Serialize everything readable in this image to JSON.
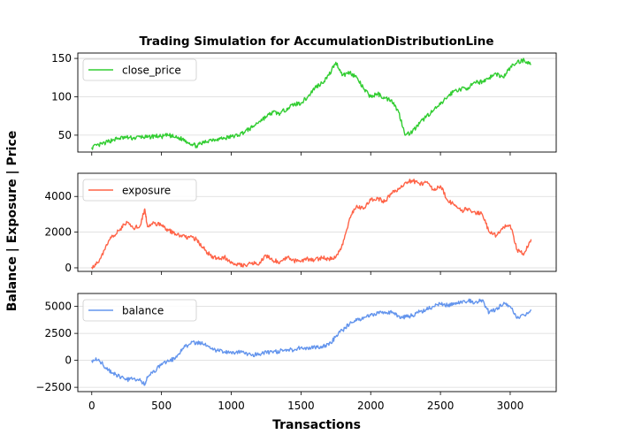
{
  "chart_data": {
    "type": "line",
    "title": "Trading Simulation for AccumulationDistributionLine",
    "xlabel": "Transactions",
    "ylabel": "Balance | Exposure | Price",
    "xlim": [
      -100,
      3330
    ],
    "x_ticks": [
      0,
      500,
      1000,
      1500,
      2000,
      2500,
      3000
    ],
    "grid": "horizontal",
    "legend_position": "top-left",
    "panels": [
      {
        "series_name": "close_price",
        "color": "#32cd32",
        "ylim": [
          28,
          157
        ],
        "y_ticks": [
          50,
          100,
          150
        ],
        "x": [
          0,
          50,
          100,
          150,
          200,
          250,
          300,
          350,
          400,
          450,
          500,
          550,
          600,
          650,
          700,
          750,
          800,
          850,
          900,
          950,
          1000,
          1050,
          1100,
          1150,
          1200,
          1250,
          1300,
          1350,
          1400,
          1450,
          1500,
          1550,
          1600,
          1650,
          1700,
          1750,
          1800,
          1850,
          1900,
          1950,
          2000,
          2050,
          2100,
          2150,
          2200,
          2250,
          2300,
          2350,
          2400,
          2450,
          2500,
          2550,
          2600,
          2650,
          2700,
          2750,
          2800,
          2850,
          2900,
          2950,
          3000,
          3050,
          3100,
          3150
        ],
        "values": [
          34,
          37,
          40,
          44,
          46,
          47,
          46,
          48,
          47,
          49,
          48,
          50,
          47,
          45,
          40,
          36,
          40,
          44,
          45,
          46,
          48,
          50,
          55,
          60,
          68,
          74,
          80,
          78,
          85,
          90,
          92,
          100,
          112,
          118,
          128,
          145,
          128,
          132,
          125,
          110,
          100,
          104,
          98,
          96,
          80,
          50,
          55,
          65,
          75,
          82,
          90,
          100,
          108,
          110,
          112,
          118,
          120,
          125,
          130,
          125,
          138,
          145,
          148,
          142
        ]
      },
      {
        "series_name": "exposure",
        "color": "#ff6347",
        "ylim": [
          -200,
          5300
        ],
        "y_ticks": [
          0,
          2000,
          4000
        ],
        "x": [
          0,
          50,
          100,
          150,
          200,
          250,
          300,
          350,
          380,
          400,
          450,
          500,
          550,
          600,
          650,
          700,
          750,
          800,
          850,
          900,
          950,
          1000,
          1050,
          1100,
          1150,
          1200,
          1250,
          1300,
          1350,
          1400,
          1450,
          1500,
          1550,
          1600,
          1650,
          1700,
          1750,
          1800,
          1850,
          1900,
          1950,
          2000,
          2050,
          2100,
          2150,
          2200,
          2250,
          2300,
          2350,
          2400,
          2450,
          2500,
          2550,
          2600,
          2650,
          2700,
          2750,
          2800,
          2850,
          2900,
          2950,
          3000,
          3050,
          3100,
          3150
        ],
        "values": [
          50,
          300,
          1200,
          1800,
          2100,
          2600,
          2200,
          2400,
          3300,
          2300,
          2500,
          2400,
          2100,
          1900,
          1800,
          1700,
          1600,
          1100,
          700,
          500,
          600,
          350,
          200,
          150,
          300,
          200,
          700,
          400,
          350,
          600,
          400,
          350,
          500,
          450,
          550,
          500,
          600,
          1300,
          2800,
          3500,
          3300,
          3800,
          3900,
          3700,
          4200,
          4400,
          4800,
          4900,
          4700,
          4800,
          4400,
          4600,
          3800,
          3500,
          3200,
          3300,
          3100,
          3000,
          2000,
          1800,
          2300,
          2400,
          1000,
          800,
          1600
        ]
      },
      {
        "series_name": "balance",
        "color": "#6495ed",
        "ylim": [
          -2900,
          6200
        ],
        "y_ticks": [
          -2500,
          0,
          2500,
          5000
        ],
        "x": [
          0,
          50,
          100,
          150,
          200,
          250,
          300,
          350,
          380,
          400,
          450,
          500,
          550,
          600,
          650,
          700,
          750,
          800,
          850,
          900,
          950,
          1000,
          1050,
          1100,
          1150,
          1200,
          1250,
          1300,
          1350,
          1400,
          1450,
          1500,
          1550,
          1600,
          1650,
          1700,
          1750,
          1800,
          1850,
          1900,
          1950,
          2000,
          2050,
          2100,
          2150,
          2200,
          2250,
          2300,
          2350,
          2400,
          2450,
          2500,
          2550,
          2600,
          2650,
          2700,
          2750,
          2800,
          2850,
          2900,
          2950,
          3000,
          3050,
          3100,
          3150
        ],
        "values": [
          0,
          100,
          -700,
          -1200,
          -1500,
          -1800,
          -1700,
          -1900,
          -2300,
          -1500,
          -1100,
          -300,
          -100,
          200,
          1100,
          1500,
          1700,
          1500,
          1100,
          900,
          800,
          700,
          800,
          600,
          500,
          600,
          800,
          700,
          900,
          1000,
          900,
          1200,
          1100,
          1200,
          1300,
          1400,
          2200,
          2800,
          3400,
          3700,
          4000,
          4200,
          4400,
          4500,
          4400,
          4100,
          4000,
          4200,
          4500,
          4700,
          5000,
          5200,
          5100,
          5300,
          5400,
          5500,
          5400,
          5600,
          4400,
          4800,
          5200,
          5000,
          3900,
          4200,
          4700
        ]
      }
    ]
  }
}
